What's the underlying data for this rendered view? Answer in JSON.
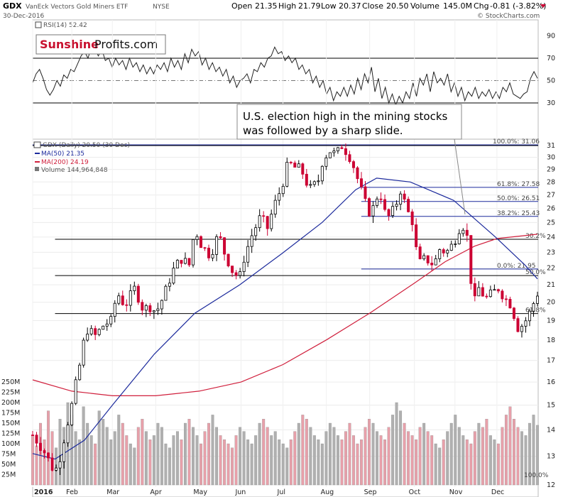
{
  "header": {
    "ticker": "GDX",
    "name": "VanEck Vectors Gold Miners ETF",
    "exchange": "NYSE",
    "date": "30-Dec-2016",
    "open_label": "Open",
    "open": "21.35",
    "high_label": "High",
    "high": "21.79",
    "low_label": "Low",
    "low": "20.37",
    "close_label": "Close",
    "close": "20.50",
    "volume_label": "Volume",
    "volume": "145.0M",
    "chg_label": "Chg",
    "chg": "-0.81 (-3.82%)",
    "credit": "© StockCharts.com"
  },
  "logo": {
    "part1": "Sunshine",
    "part2": "Profits.com"
  },
  "rsi": {
    "label": "RSI(14) 52.42",
    "ticks": [
      90,
      70,
      50,
      30
    ],
    "values": [
      48,
      56,
      60,
      52,
      42,
      37,
      42,
      50,
      45,
      55,
      52,
      60,
      58,
      65,
      72,
      76,
      70,
      80,
      78,
      72,
      78,
      68,
      70,
      62,
      70,
      64,
      68,
      60,
      70,
      62,
      66,
      58,
      64,
      56,
      62,
      56,
      64,
      60,
      66,
      58,
      70,
      62,
      68,
      60,
      74,
      66,
      78,
      72,
      76,
      64,
      70,
      60,
      66,
      58,
      62,
      54,
      60,
      48,
      54,
      44,
      50,
      52,
      56,
      48,
      60,
      58,
      66,
      62,
      70,
      72,
      80,
      74,
      76,
      68,
      72,
      66,
      70,
      60,
      64,
      56,
      60,
      48,
      54,
      44,
      50,
      38,
      44,
      32,
      40,
      36,
      44,
      36,
      46,
      38,
      52,
      42,
      56,
      48,
      62,
      40,
      52,
      34,
      44,
      30,
      38,
      28,
      36,
      30,
      40,
      34,
      48,
      36,
      52,
      46,
      56,
      40,
      58,
      48,
      52,
      46,
      56,
      40,
      48,
      36,
      44,
      32,
      40,
      36,
      44,
      34,
      40,
      36,
      42,
      34,
      40,
      34,
      44,
      40,
      48,
      38,
      36,
      34,
      38,
      40,
      52,
      58,
      52
    ],
    "colors": {
      "line": "#222222",
      "band": "#000000",
      "mid": "#777777"
    }
  },
  "annotation": {
    "lines": [
      "U.S. election high in the mining stocks",
      "was followed by a sharp slide."
    ]
  },
  "price_legend": {
    "series": "GDX (Daily) 20.50 (30 Dec)",
    "ma50": "MA(50) 21.35",
    "ma200": "MA(200) 24.19",
    "volume": "Volume 144,964,848"
  },
  "chart_data": {
    "type": "candlestick",
    "x_start": "2016-01-04",
    "x_end": "2016-12-30",
    "x_ticks": [
      {
        "label": "2016",
        "date": "2016-01-04"
      },
      {
        "label": "Feb",
        "date": "2016-02-01"
      },
      {
        "label": "Mar",
        "date": "2016-03-01"
      },
      {
        "label": "Apr",
        "date": "2016-04-01"
      },
      {
        "label": "May",
        "date": "2016-05-02"
      },
      {
        "label": "Jun",
        "date": "2016-06-01"
      },
      {
        "label": "Jul",
        "date": "2016-07-01"
      },
      {
        "label": "Aug",
        "date": "2016-08-01"
      },
      {
        "label": "Sep",
        "date": "2016-09-01"
      },
      {
        "label": "Oct",
        "date": "2016-10-03"
      },
      {
        "label": "Nov",
        "date": "2016-11-01"
      },
      {
        "label": "Dec",
        "date": "2016-12-01"
      }
    ],
    "y_scale": "log",
    "y_ticks": [
      31,
      30,
      29,
      28,
      27,
      26,
      25,
      24,
      23,
      22,
      21,
      20,
      19,
      18,
      17,
      16,
      15,
      14,
      13,
      12
    ],
    "vol_ticks": [
      {
        "label": "250M",
        "v": 250
      },
      {
        "label": "225M",
        "v": 225
      },
      {
        "label": "200M",
        "v": 200
      },
      {
        "label": "175M",
        "v": 175
      },
      {
        "label": "150M",
        "v": 150
      },
      {
        "label": "125M",
        "v": 125
      },
      {
        "label": "100M",
        "v": 100
      },
      {
        "label": "75M",
        "v": 75
      },
      {
        "label": "50M",
        "v": 50
      },
      {
        "label": "25M",
        "v": 25
      }
    ],
    "close_path": [
      [
        "2016-01-04",
        13.8
      ],
      [
        "2016-01-12",
        13.2
      ],
      [
        "2016-01-19",
        12.5
      ],
      [
        "2016-01-22",
        12.6
      ],
      [
        "2016-01-27",
        13.8
      ],
      [
        "2016-02-01",
        15.0
      ],
      [
        "2016-02-08",
        17.2
      ],
      [
        "2016-02-11",
        18.6
      ],
      [
        "2016-02-18",
        18.2
      ],
      [
        "2016-02-24",
        18.8
      ],
      [
        "2016-03-01",
        19.0
      ],
      [
        "2016-03-04",
        20.6
      ],
      [
        "2016-03-10",
        19.8
      ],
      [
        "2016-03-17",
        20.8
      ],
      [
        "2016-03-23",
        19.6
      ],
      [
        "2016-03-29",
        19.8
      ],
      [
        "2016-04-01",
        19.4
      ],
      [
        "2016-04-07",
        20.4
      ],
      [
        "2016-04-13",
        21.8
      ],
      [
        "2016-04-19",
        22.6
      ],
      [
        "2016-04-25",
        22.2
      ],
      [
        "2016-04-29",
        24.6
      ],
      [
        "2016-05-04",
        23.4
      ],
      [
        "2016-05-10",
        22.8
      ],
      [
        "2016-05-16",
        24.2
      ],
      [
        "2016-05-20",
        23.0
      ],
      [
        "2016-05-26",
        21.8
      ],
      [
        "2016-05-31",
        21.4
      ],
      [
        "2016-06-03",
        22.6
      ],
      [
        "2016-06-09",
        24.2
      ],
      [
        "2016-06-15",
        25.4
      ],
      [
        "2016-06-20",
        24.6
      ],
      [
        "2016-06-24",
        26.0
      ],
      [
        "2016-06-30",
        27.6
      ],
      [
        "2016-07-05",
        29.6
      ],
      [
        "2016-07-08",
        29.2
      ],
      [
        "2016-07-14",
        29.0
      ],
      [
        "2016-07-20",
        27.4
      ],
      [
        "2016-07-26",
        28.0
      ],
      [
        "2016-07-29",
        29.6
      ],
      [
        "2016-08-03",
        30.6
      ],
      [
        "2016-08-08",
        30.2
      ],
      [
        "2016-08-12",
        31.0
      ],
      [
        "2016-08-16",
        30.4
      ],
      [
        "2016-08-19",
        29.8
      ],
      [
        "2016-08-24",
        28.0
      ],
      [
        "2016-08-30",
        26.0
      ],
      [
        "2016-09-02",
        25.6
      ],
      [
        "2016-09-08",
        27.4
      ],
      [
        "2016-09-13",
        25.2
      ],
      [
        "2016-09-19",
        26.0
      ],
      [
        "2016-09-23",
        27.4
      ],
      [
        "2016-09-28",
        25.8
      ],
      [
        "2016-10-03",
        24.8
      ],
      [
        "2016-10-05",
        22.2
      ],
      [
        "2016-10-11",
        22.6
      ],
      [
        "2016-10-17",
        22.2
      ],
      [
        "2016-10-21",
        23.2
      ],
      [
        "2016-10-26",
        23.0
      ],
      [
        "2016-10-31",
        23.6
      ],
      [
        "2016-11-04",
        24.6
      ],
      [
        "2016-11-09",
        24.9
      ],
      [
        "2016-11-11",
        22.0
      ],
      [
        "2016-11-15",
        20.0
      ],
      [
        "2016-11-18",
        20.8
      ],
      [
        "2016-11-23",
        20.2
      ],
      [
        "2016-11-29",
        20.6
      ],
      [
        "2016-12-02",
        20.8
      ],
      [
        "2016-12-07",
        20.2
      ],
      [
        "2016-12-12",
        19.8
      ],
      [
        "2016-12-15",
        18.6
      ],
      [
        "2016-12-20",
        18.8
      ],
      [
        "2016-12-23",
        19.2
      ],
      [
        "2016-12-27",
        19.8
      ],
      [
        "2016-12-29",
        21.3
      ],
      [
        "2016-12-30",
        20.5
      ]
    ],
    "ma50_path": [
      [
        "2016-01-04",
        13.1
      ],
      [
        "2016-01-20",
        12.9
      ],
      [
        "2016-02-10",
        13.6
      ],
      [
        "2016-03-01",
        15.0
      ],
      [
        "2016-03-31",
        17.3
      ],
      [
        "2016-04-29",
        19.4
      ],
      [
        "2016-05-31",
        21.0
      ],
      [
        "2016-06-30",
        22.9
      ],
      [
        "2016-07-29",
        25.0
      ],
      [
        "2016-08-22",
        27.4
      ],
      [
        "2016-09-06",
        28.3
      ],
      [
        "2016-09-30",
        28.0
      ],
      [
        "2016-10-31",
        26.6
      ],
      [
        "2016-11-30",
        24.0
      ],
      [
        "2016-12-21",
        22.2
      ],
      [
        "2016-12-30",
        21.35
      ]
    ],
    "ma200_path": [
      [
        "2016-01-04",
        16.1
      ],
      [
        "2016-02-01",
        15.6
      ],
      [
        "2016-03-01",
        15.4
      ],
      [
        "2016-04-01",
        15.4
      ],
      [
        "2016-05-02",
        15.6
      ],
      [
        "2016-06-01",
        16.0
      ],
      [
        "2016-07-01",
        16.8
      ],
      [
        "2016-08-01",
        18.0
      ],
      [
        "2016-09-01",
        19.4
      ],
      [
        "2016-10-03",
        21.1
      ],
      [
        "2016-10-25",
        22.4
      ],
      [
        "2016-11-15",
        23.4
      ],
      [
        "2016-12-01",
        23.9
      ],
      [
        "2016-12-30",
        24.19
      ]
    ],
    "volume_values": [
      120,
      95,
      150,
      110,
      180,
      130,
      90,
      160,
      140,
      200,
      170,
      130,
      110,
      190,
      150,
      120,
      100,
      180,
      160,
      140,
      110,
      130,
      170,
      150,
      120,
      100,
      90,
      140,
      160,
      130,
      110,
      120,
      150,
      140,
      100,
      90,
      120,
      130,
      110,
      150,
      160,
      140,
      120,
      100,
      130,
      150,
      170,
      140,
      120,
      110,
      100,
      90,
      120,
      140,
      130,
      110,
      100,
      120,
      150,
      160,
      140,
      120,
      130,
      110,
      100,
      90,
      110,
      130,
      150,
      170,
      160,
      140,
      120,
      110,
      100,
      130,
      150,
      140,
      120,
      110,
      130,
      150,
      120,
      100,
      110,
      140,
      160,
      150,
      130,
      120,
      110,
      140,
      170,
      200,
      180,
      150,
      130,
      120,
      110,
      140,
      150,
      130,
      120,
      100,
      90,
      110,
      130,
      150,
      170,
      140,
      120,
      110,
      100,
      130,
      150,
      140,
      160,
      120,
      110,
      100,
      140,
      170,
      190,
      160,
      140,
      130,
      120,
      150,
      170,
      145
    ],
    "fib_levels": [
      {
        "label": "100.0%: 31.06",
        "price": 31.06
      },
      {
        "label": "61.8%: 27.58",
        "price": 27.58
      },
      {
        "label": "50.0%: 26.51",
        "price": 26.51
      },
      {
        "label": "38.2%: 25.43",
        "price": 25.43
      },
      {
        "label": "0.0%: 21.95",
        "price": 21.95
      }
    ],
    "black_levels": [
      {
        "label": "",
        "price": 31.0
      },
      {
        "label": "30.2%",
        "price": 23.85
      },
      {
        "label": "50.0%",
        "price": 21.55
      },
      {
        "label": "61.8%",
        "price": 19.38
      }
    ],
    "vol_corner_label": "100.0%"
  },
  "colors": {
    "up": "#000000",
    "down": "#cc0033",
    "ma50": "#1c2a9c",
    "ma200": "#d01f3c",
    "fib": "#1c2a9c",
    "vol_up": "#b0b0b0",
    "vol_down": "#e8a0aa",
    "logo_red": "#c8102e"
  }
}
